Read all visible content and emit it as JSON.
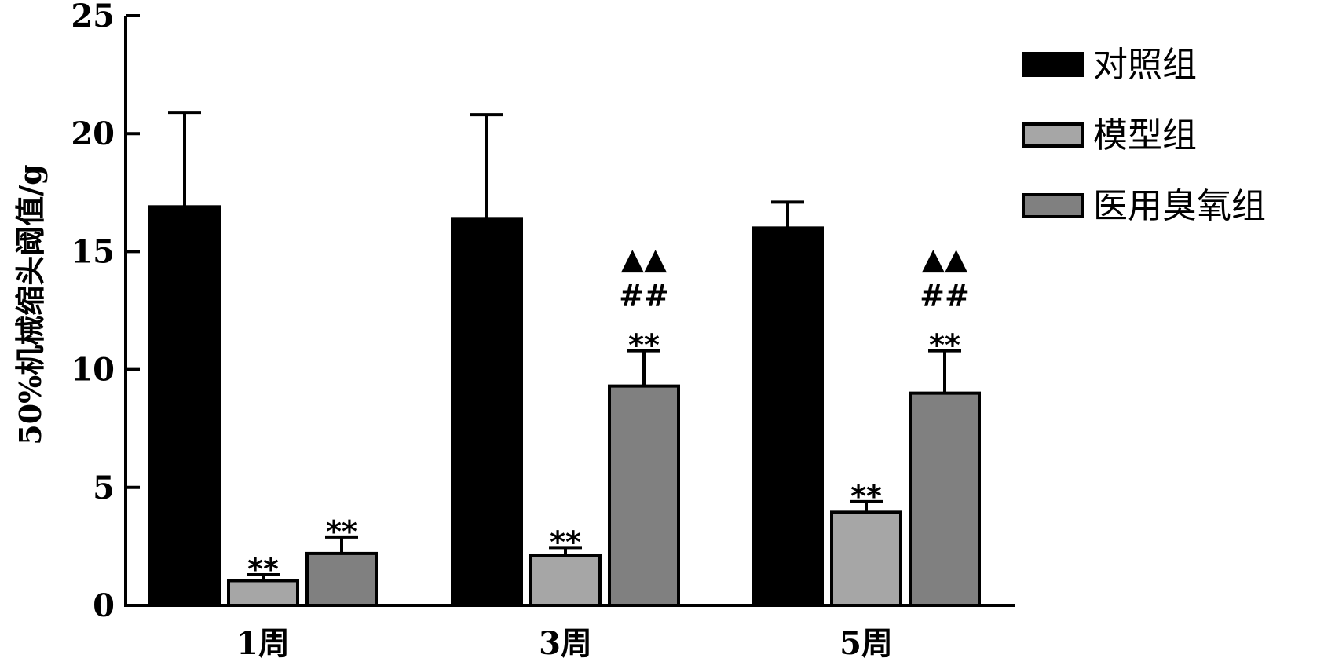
{
  "chart_data": {
    "type": "bar",
    "ylabel": "50%机械缩头阈值/g",
    "ylim": [
      0,
      25
    ],
    "yticks": [
      0,
      5,
      10,
      15,
      20,
      25
    ],
    "categories": [
      "1周",
      "3周",
      "5周"
    ],
    "series": [
      {
        "name": "对照组",
        "color": "#000000",
        "values": [
          16.9,
          16.4,
          16.0
        ],
        "errors": [
          4.0,
          4.4,
          1.1
        ]
      },
      {
        "name": "模型组",
        "color": "#a6a6a6",
        "values": [
          1.05,
          2.1,
          3.95
        ],
        "errors": [
          0.25,
          0.35,
          0.45
        ]
      },
      {
        "name": "医用臭氧组",
        "color": "#808080",
        "values": [
          2.2,
          9.3,
          9.0
        ],
        "errors": [
          0.7,
          1.5,
          1.8
        ]
      }
    ],
    "annotations": [
      {
        "category": 0,
        "series": 1,
        "lines": [
          "**"
        ]
      },
      {
        "category": 0,
        "series": 2,
        "lines": [
          "**"
        ]
      },
      {
        "category": 1,
        "series": 1,
        "lines": [
          "**"
        ]
      },
      {
        "category": 1,
        "series": 2,
        "lines": [
          "▲▲",
          "##",
          "**"
        ]
      },
      {
        "category": 2,
        "series": 1,
        "lines": [
          "**"
        ]
      },
      {
        "category": 2,
        "series": 2,
        "lines": [
          "▲▲",
          "##",
          "**"
        ]
      }
    ],
    "legend_position": "top-right",
    "grid": false
  }
}
